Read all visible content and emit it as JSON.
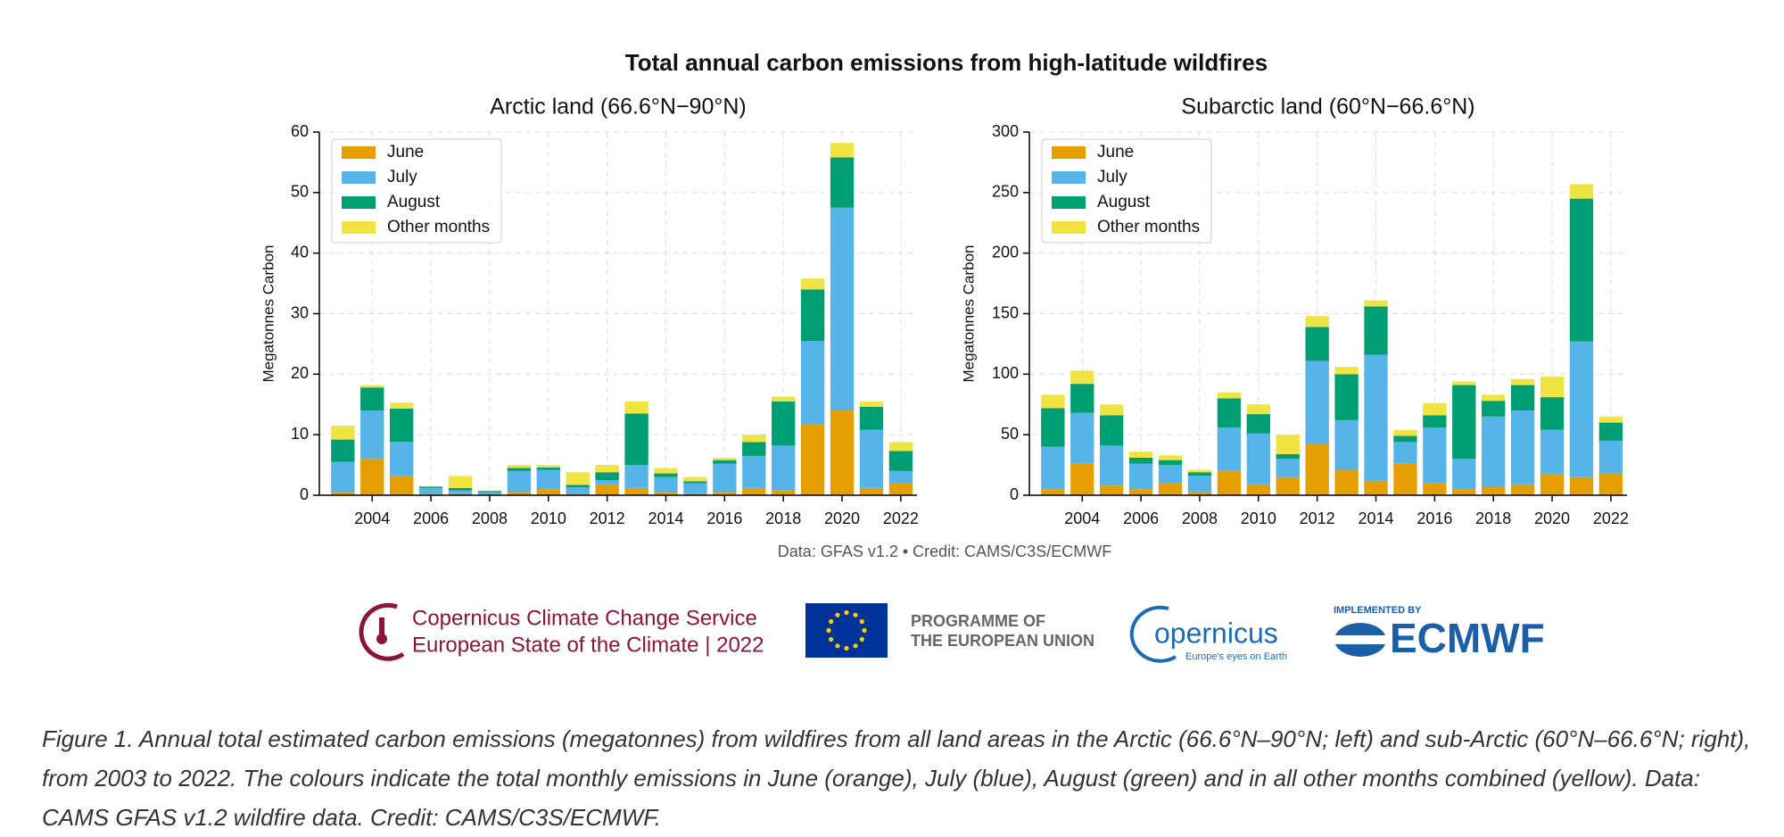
{
  "title": "Total annual carbon emissions from high-latitude wildfires",
  "chart_data": [
    {
      "type": "bar",
      "stacked": true,
      "title": "Arctic land (66.6°N−90°N)",
      "ylabel": "Megatonnes Carbon",
      "x": [
        2003,
        2004,
        2005,
        2006,
        2007,
        2008,
        2009,
        2010,
        2011,
        2012,
        2013,
        2014,
        2015,
        2016,
        2017,
        2018,
        2019,
        2020,
        2021,
        2022
      ],
      "xlim": [
        2002.2,
        2022.55
      ],
      "xticks": [
        2004,
        2006,
        2008,
        2010,
        2012,
        2014,
        2016,
        2018,
        2020,
        2022
      ],
      "ylim": [
        0,
        60
      ],
      "yticks": [
        0,
        10,
        20,
        30,
        40,
        50,
        60
      ],
      "grid": true,
      "legend": "upper left",
      "series": [
        {
          "name": "June",
          "color": "#e69f00",
          "values": [
            0.5,
            6,
            3.2,
            0.2,
            0.3,
            0.1,
            0.5,
            1.0,
            0.3,
            1.8,
            1.2,
            0.5,
            0.3,
            0.5,
            1.2,
            0.8,
            11.8,
            14,
            1.2,
            2
          ]
        },
        {
          "name": "July",
          "color": "#56b4e9",
          "values": [
            5,
            8,
            5.6,
            1.0,
            0.5,
            0.4,
            3.5,
            3.2,
            1.0,
            0.7,
            3.8,
            2.5,
            1.7,
            4.7,
            5.3,
            7.4,
            13.7,
            33.5,
            9.6,
            2.0
          ]
        },
        {
          "name": "August",
          "color": "#009e73",
          "values": [
            3.7,
            3.8,
            5.5,
            0.2,
            0.4,
            0.2,
            0.5,
            0.4,
            0.4,
            1.3,
            8.5,
            0.6,
            0.3,
            0.6,
            2.3,
            7.3,
            8.5,
            8.3,
            3.8,
            3.3
          ]
        },
        {
          "name": "Other months",
          "color": "#f0e442",
          "values": [
            2.3,
            0.4,
            1.0,
            0.1,
            2.0,
            0.1,
            0.5,
            0.4,
            2.1,
            1.2,
            2.0,
            0.9,
            0.7,
            0.4,
            1.2,
            0.8,
            1.8,
            2.4,
            0.9,
            1.5
          ]
        }
      ]
    },
    {
      "type": "bar",
      "stacked": true,
      "title": "Subarctic land (60°N−66.6°N)",
      "ylabel": "Megatonnes Carbon",
      "x": [
        2003,
        2004,
        2005,
        2006,
        2007,
        2008,
        2009,
        2010,
        2011,
        2012,
        2013,
        2014,
        2015,
        2016,
        2017,
        2018,
        2019,
        2020,
        2021,
        2022
      ],
      "xlim": [
        2002.2,
        2022.55
      ],
      "xticks": [
        2004,
        2006,
        2008,
        2010,
        2012,
        2014,
        2016,
        2018,
        2020,
        2022
      ],
      "ylim": [
        0,
        300
      ],
      "yticks": [
        0,
        50,
        100,
        150,
        200,
        250,
        300
      ],
      "grid": true,
      "legend": "upper left",
      "series": [
        {
          "name": "June",
          "color": "#e69f00",
          "values": [
            5,
            26,
            8,
            5,
            10,
            3,
            20,
            9,
            15,
            42,
            21,
            12,
            26,
            10,
            5,
            7,
            9,
            17,
            15,
            18
          ]
        },
        {
          "name": "July",
          "color": "#56b4e9",
          "values": [
            35,
            42,
            33,
            21,
            15,
            13,
            36,
            42,
            15,
            69,
            41,
            104,
            18,
            46,
            25,
            58,
            61,
            37,
            112,
            27
          ]
        },
        {
          "name": "August",
          "color": "#009e73",
          "values": [
            32,
            24,
            25,
            5,
            4,
            3,
            24,
            16,
            4,
            28,
            38,
            40,
            5,
            10,
            61,
            13,
            21,
            27,
            118,
            15
          ]
        },
        {
          "name": "Other months",
          "color": "#f0e442",
          "values": [
            11,
            11,
            9,
            5,
            4,
            2,
            5,
            8,
            16,
            9,
            6,
            5,
            5,
            10,
            3,
            5,
            5,
            17,
            12,
            5
          ]
        }
      ]
    }
  ],
  "credit": "Data: GFAS v1.2 • Credit: CAMS/C3S/ECMWF",
  "logos": {
    "c3s_line1": "Copernicus Climate Change Service",
    "c3s_line2": "European State of the Climate | 2022",
    "eu_line1": "PROGRAMME OF",
    "eu_line2": "THE EUROPEAN UNION",
    "copernicus": "opernicus",
    "copernicus_tagline": "Europe's eyes on Earth",
    "ecmwf_pre": "IMPLEMENTED BY",
    "ecmwf": "ECMWF"
  },
  "caption": "Figure 1. Annual total estimated carbon emissions (megatonnes) from wildfires from all land areas in the Arctic (66.6°N–90°N; left) and sub-Arctic (60°N–66.6°N; right), from 2003 to 2022. The colours indicate the total monthly emissions in June (orange), July (blue), August (green) and in all other months combined (yellow). Data: CAMS GFAS v1.2 wildfire data. Credit: CAMS/C3S/ECMWF."
}
